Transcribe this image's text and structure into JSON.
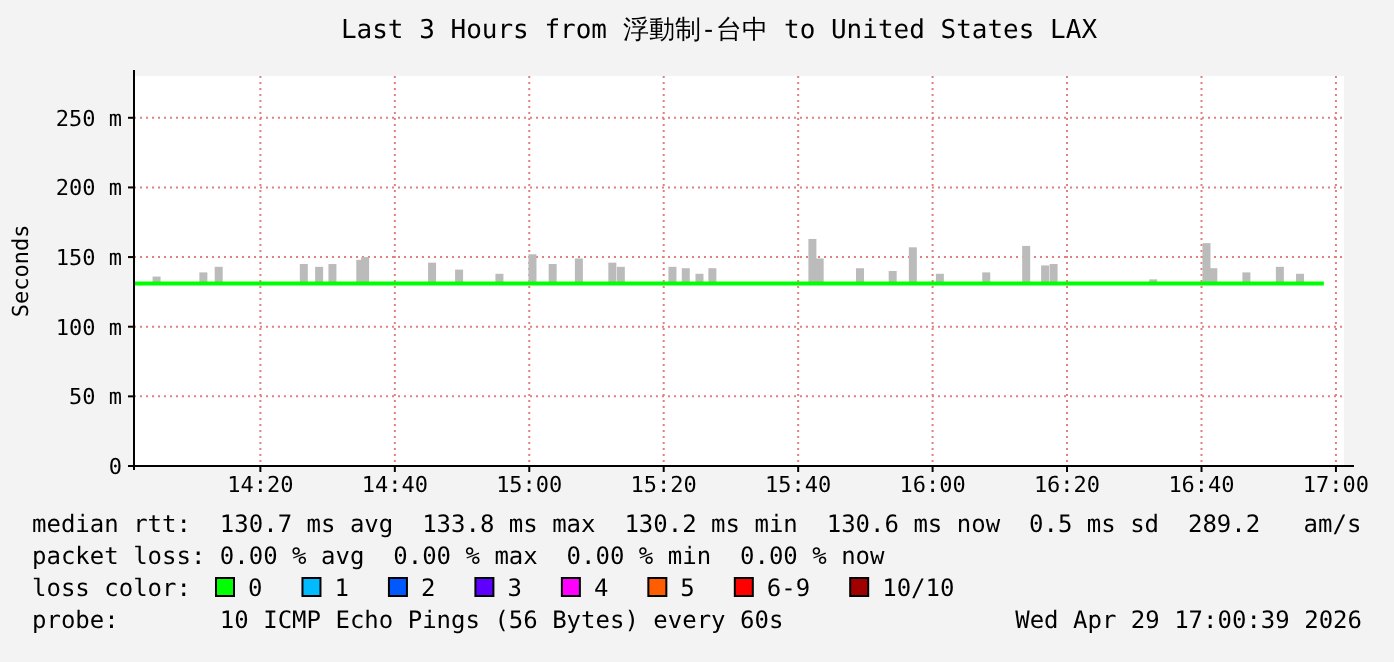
{
  "chart_data": {
    "type": "line",
    "title": "Last 3 Hours from 浮動制-台中 to United States LAX",
    "ylabel": "Seconds",
    "xlim": [
      14.02,
      17.02
    ],
    "xticks": [
      {
        "value": 14.3333,
        "label": "14:20"
      },
      {
        "value": 14.6667,
        "label": "14:40"
      },
      {
        "value": 15,
        "label": "15:00"
      },
      {
        "value": 15.3333,
        "label": "15:20"
      },
      {
        "value": 15.6667,
        "label": "15:40"
      },
      {
        "value": 16,
        "label": "16:00"
      },
      {
        "value": 16.3333,
        "label": "16:20"
      },
      {
        "value": 16.6667,
        "label": "16:40"
      },
      {
        "value": 17,
        "label": "17:00"
      }
    ],
    "ylim": [
      0,
      280
    ],
    "yticks": [
      0,
      {
        "value": 50,
        "label": "50 m"
      },
      {
        "value": 100,
        "label": "100 m"
      },
      {
        "value": 150,
        "label": "150 m"
      },
      {
        "value": 200,
        "label": "200 m"
      },
      {
        "value": 250,
        "label": "250 m"
      }
    ],
    "grid": true,
    "legend": "bottom",
    "legend_title": "loss color:",
    "series": [
      {
        "type": "bar",
        "color": "#bbbbbb",
        "x": [
          14.076,
          14.192,
          14.23,
          14.441,
          14.479,
          14.512,
          14.581,
          14.593,
          14.759,
          14.826,
          14.926,
          15.008,
          15.058,
          15.123,
          15.206,
          15.227,
          15.355,
          15.388,
          15.422,
          15.454,
          15.702,
          15.72,
          15.82,
          15.901,
          15.951,
          16.018,
          16.133,
          16.232,
          16.279,
          16.3,
          16.547,
          16.679,
          16.696,
          16.778,
          16.861,
          16.911
        ],
        "base": [
          130,
          130,
          130,
          130,
          130,
          130,
          130,
          130,
          130,
          130,
          130,
          130,
          130,
          130,
          130,
          130,
          130,
          130,
          130,
          130,
          130,
          130,
          130,
          130,
          130,
          130,
          130,
          130,
          130,
          130,
          130,
          130,
          130,
          130,
          130,
          130
        ],
        "values": [
          6,
          9,
          13,
          15,
          13,
          15,
          18,
          20,
          16,
          11,
          8,
          22,
          15,
          19,
          16,
          13,
          13,
          12,
          8,
          12,
          33,
          19,
          12,
          10,
          27,
          8,
          9,
          28,
          14,
          15,
          4,
          30,
          12,
          9,
          13,
          8
        ]
      },
      {
        "name": "0",
        "color": "#00ff00",
        "x": [
          14.02,
          16.97
        ],
        "values": [
          131,
          131
        ]
      },
      {
        "name": "1",
        "color": "#00bbff"
      },
      {
        "name": "2",
        "color": "#0059ff"
      },
      {
        "name": "3",
        "color": "#5e00ff"
      },
      {
        "name": "4",
        "color": "#ff00ff"
      },
      {
        "name": "5",
        "color": "#ff5e00"
      },
      {
        "name": "6-9",
        "color": "#ff0000"
      },
      {
        "name": "10/10",
        "color": "#a10000"
      }
    ],
    "annotations": [
      "median rtt:  130.7 ms avg  133.8 ms max  130.2 ms min  130.6 ms now  0.5 ms sd  289.2   am/s",
      "packet loss: 0.00 % avg  0.00 % max  0.00 % min  0.00 % now",
      "probe:       10 ICMP Echo Pings (56 Bytes) every 60s",
      "Wed Apr 29 17:00:39 2026"
    ]
  }
}
